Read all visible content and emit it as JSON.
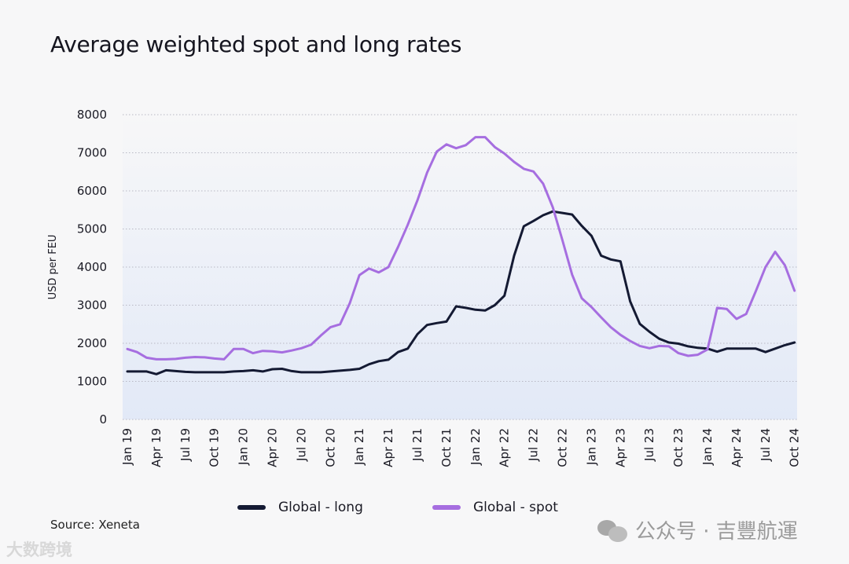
{
  "chart_data": {
    "type": "line",
    "title": "Average weighted spot and long rates",
    "xlabel": "",
    "ylabel": "USD per FEU",
    "ylim": [
      0,
      8000
    ],
    "yticks": [
      0,
      1000,
      2000,
      3000,
      4000,
      5000,
      6000,
      7000,
      8000
    ],
    "grid": true,
    "legend_position": "bottom",
    "x_start": "Jan 19",
    "x_end": "Oct 24",
    "x_frequency": "monthly",
    "xtick_labels": [
      "Jan 19",
      "Apr 19",
      "Jul 19",
      "Oct 19",
      "Jan 20",
      "Apr 20",
      "Jul 20",
      "Oct 20",
      "Jan 21",
      "Apr 21",
      "Jul 21",
      "Oct 21",
      "Jan 22",
      "Apr 22",
      "Jul 22",
      "Oct 22",
      "Jan 23",
      "Apr 23",
      "Jul 23",
      "Oct 23",
      "Jan 24",
      "Apr 24",
      "Jul 24",
      "Oct 24"
    ],
    "series": [
      {
        "name": "Global - long",
        "color": "#141a33",
        "values": [
          1260,
          1260,
          1260,
          1190,
          1290,
          1270,
          1250,
          1240,
          1240,
          1240,
          1240,
          1260,
          1270,
          1290,
          1260,
          1320,
          1330,
          1270,
          1240,
          1240,
          1240,
          1260,
          1280,
          1300,
          1330,
          1450,
          1530,
          1570,
          1770,
          1860,
          2240,
          2480,
          2530,
          2570,
          2970,
          2930,
          2880,
          2860,
          3000,
          3250,
          4300,
          5070,
          5210,
          5360,
          5460,
          5420,
          5380,
          5080,
          4820,
          4300,
          4200,
          4150,
          3100,
          2510,
          2300,
          2120,
          2020,
          1990,
          1920,
          1880,
          1860,
          1780,
          1860,
          1860,
          1860,
          1860,
          1770,
          1860,
          1950,
          2020
        ]
      },
      {
        "name": "Global - spot",
        "color": "#a66ee0",
        "values": [
          1850,
          1770,
          1620,
          1580,
          1580,
          1590,
          1620,
          1640,
          1630,
          1600,
          1580,
          1850,
          1850,
          1740,
          1800,
          1790,
          1760,
          1810,
          1870,
          1960,
          2200,
          2420,
          2500,
          3050,
          3790,
          3960,
          3860,
          4000,
          4530,
          5110,
          5750,
          6480,
          7030,
          7220,
          7120,
          7200,
          7410,
          7410,
          7150,
          6980,
          6760,
          6580,
          6510,
          6190,
          5570,
          4700,
          3800,
          3180,
          2950,
          2680,
          2420,
          2220,
          2060,
          1930,
          1870,
          1930,
          1920,
          1740,
          1670,
          1700,
          1840,
          2930,
          2900,
          2640,
          2770,
          3370,
          4000,
          4400,
          4050,
          3380
        ]
      }
    ],
    "source": "Source: Xeneta"
  },
  "watermarks": {
    "right": "公众号 · 吉豐航運",
    "left": "大数跨境"
  },
  "colors": {
    "background": "#f7f7f8",
    "grid": "#b8b8c4",
    "plot_fill_bottom": "#e2e9f7"
  }
}
